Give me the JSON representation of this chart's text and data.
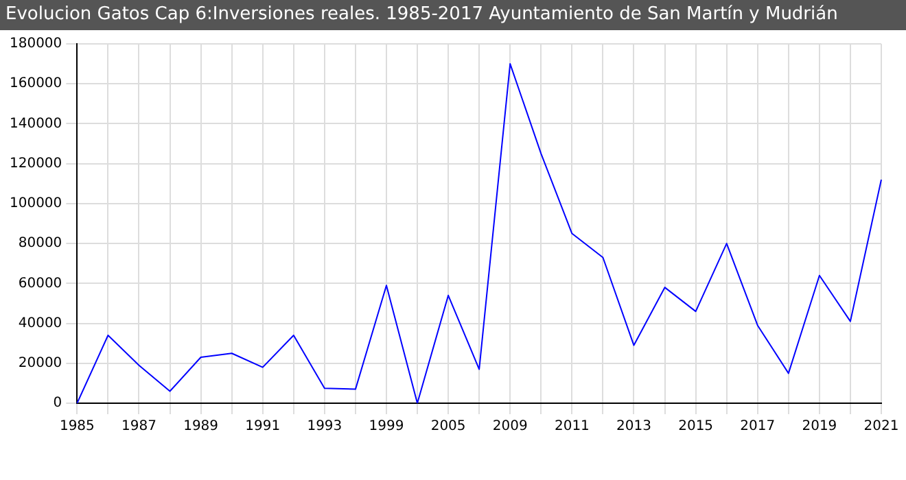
{
  "chart_data": {
    "type": "line",
    "title": "Evolucion Gatos Cap 6:Inversiones reales. 1985-2017 Ayuntamiento de San Martín y Mudrián",
    "categories": [
      "1985",
      null,
      "1987",
      null,
      "1989",
      null,
      "1991",
      null,
      "1993",
      null,
      "1999",
      null,
      "2005",
      null,
      "2009",
      null,
      "2011",
      null,
      "2013",
      null,
      "2015",
      null,
      "2017",
      null,
      "2019",
      null,
      "2021"
    ],
    "series": [
      {
        "color": "#0000ff",
        "values": [
          0,
          34000,
          19000,
          6000,
          23000,
          25000,
          18000,
          34000,
          7500,
          7000,
          59000,
          0,
          54000,
          17000,
          170000,
          125000,
          85000,
          73000,
          29000,
          58000,
          46000,
          80000,
          39000,
          15000,
          64000,
          41000,
          112000
        ]
      }
    ],
    "ylim": [
      0,
      180000
    ],
    "yticks": [
      0,
      20000,
      40000,
      60000,
      80000,
      100000,
      120000,
      140000,
      160000,
      180000
    ],
    "grid": true,
    "marker": "none",
    "line_style": "solid",
    "legend": false
  }
}
